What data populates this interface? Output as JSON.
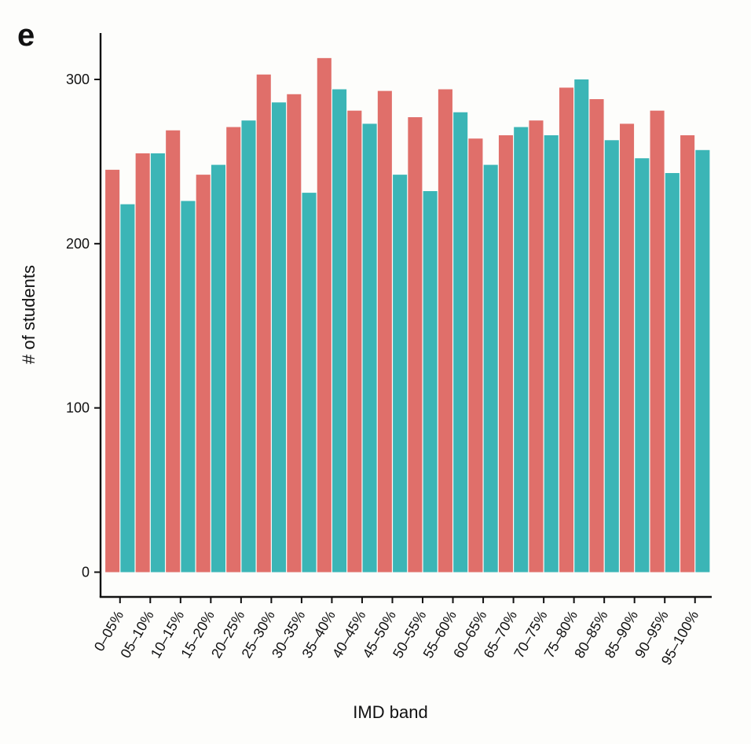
{
  "panel_label": "e",
  "chart_data": {
    "type": "bar",
    "xlabel": "IMD band",
    "ylabel": "# of students",
    "ylim": [
      -15,
      328
    ],
    "yticks": [
      0,
      100,
      200,
      300
    ],
    "categories": [
      "0–05%",
      "05–10%",
      "10–15%",
      "15–20%",
      "20–25%",
      "25–30%",
      "30–35%",
      "35–40%",
      "40–45%",
      "45–50%",
      "50–55%",
      "55–60%",
      "60–65%",
      "65–70%",
      "70–75%",
      "75–80%",
      "80–85%",
      "85–90%",
      "90–95%",
      "95–100%"
    ],
    "colors": [
      "#e06f6a",
      "#3bb5b6"
    ],
    "series": [
      {
        "values": [
          245,
          255,
          269,
          242,
          271,
          303,
          291,
          313,
          281,
          293,
          277,
          294,
          264,
          266,
          275,
          295,
          288,
          273,
          281,
          266
        ]
      },
      {
        "values": [
          224,
          255,
          226,
          248,
          275,
          286,
          231,
          294,
          273,
          242,
          232,
          280,
          248,
          271,
          266,
          300,
          263,
          252,
          243,
          257
        ]
      }
    ]
  }
}
